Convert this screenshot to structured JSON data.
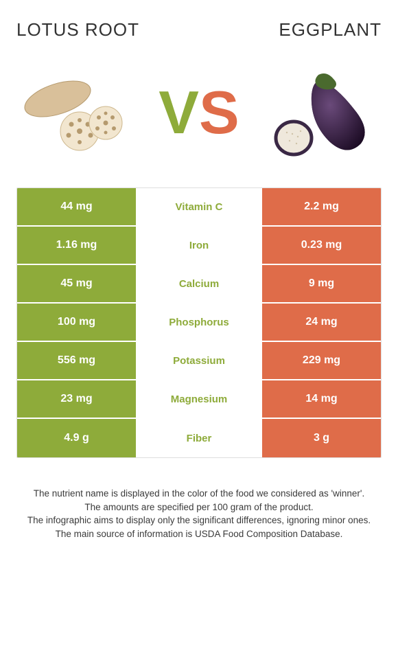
{
  "header": {
    "left_title": "LOTUS ROOT",
    "right_title": "EGGPLANT"
  },
  "vs": {
    "v": "V",
    "s": "S"
  },
  "colors": {
    "left_cell_bg": "#8eab3a",
    "right_cell_bg": "#df6c49",
    "winner_left_text": "#8eab3a",
    "winner_right_text": "#df6c49",
    "mid_bg": "#ffffff",
    "cell_text": "#ffffff",
    "border": "#dedede",
    "footnote_text": "#3a3a3a"
  },
  "comparison_table": {
    "type": "table",
    "rows": [
      {
        "nutrient": "Vitamin C",
        "left": "44 mg",
        "right": "2.2 mg",
        "winner": "left"
      },
      {
        "nutrient": "Iron",
        "left": "1.16 mg",
        "right": "0.23 mg",
        "winner": "left"
      },
      {
        "nutrient": "Calcium",
        "left": "45 mg",
        "right": "9 mg",
        "winner": "left"
      },
      {
        "nutrient": "Phosphorus",
        "left": "100 mg",
        "right": "24 mg",
        "winner": "left"
      },
      {
        "nutrient": "Potassium",
        "left": "556 mg",
        "right": "229 mg",
        "winner": "left"
      },
      {
        "nutrient": "Magnesium",
        "left": "23 mg",
        "right": "14 mg",
        "winner": "left"
      },
      {
        "nutrient": "Fiber",
        "left": "4.9 g",
        "right": "3 g",
        "winner": "left"
      }
    ]
  },
  "footnotes": {
    "line1": "The nutrient name is displayed in the color of the food we considered as 'winner'.",
    "line2": "The amounts are specified per 100 gram of the product.",
    "line3": "The infographic aims to display only the significant differences, ignoring minor ones.",
    "line4": "The main source of information is USDA Food Composition Database."
  }
}
